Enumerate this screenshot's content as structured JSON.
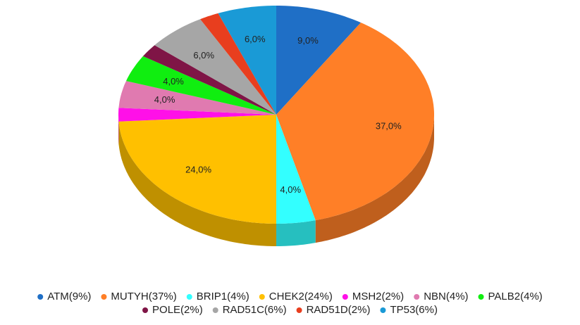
{
  "chart_data": {
    "type": "pie",
    "categories": [
      "ATM(9%)",
      "MUTYH(37%)",
      "BRIP1(4%)",
      "CHEK2(24%)",
      "MSH2(2%)",
      "NBN(4%)",
      "PALB2(4%)",
      "POLE(2%)",
      "RAD51C(6%)",
      "RAD51D(2%)",
      "TP53(6%)"
    ],
    "values": [
      9,
      37,
      4,
      24,
      2,
      4,
      4,
      2,
      6,
      2,
      6
    ],
    "value_labels": [
      "9,0%",
      "37,0%",
      "4,0%",
      "24,0%",
      null,
      "4,0%",
      "4,0%",
      null,
      "6,0%",
      null,
      "6,0%"
    ],
    "colors": [
      "#1f6fc6",
      "#ff7f27",
      "#33ffff",
      "#ffc000",
      "#ff10e8",
      "#e07ab0",
      "#10ee10",
      "#7f1546",
      "#a6a6a6",
      "#e83e1e",
      "#1a9ad6"
    ],
    "legend": "bottom"
  }
}
